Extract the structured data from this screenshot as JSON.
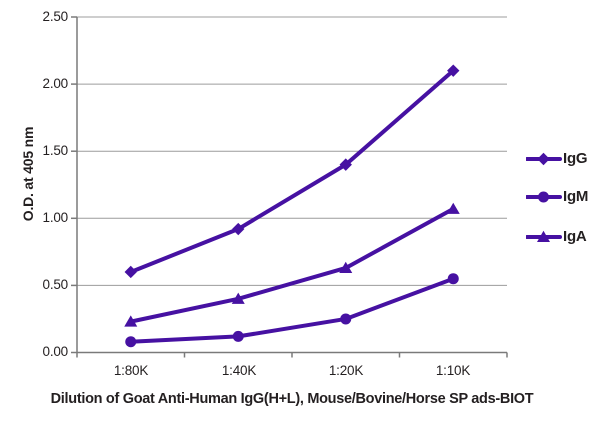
{
  "colors": {
    "series": "#4611a2",
    "grid": "#9c9c9c",
    "axis": "#7a7a7a",
    "text": "#231f20"
  },
  "chart_data": {
    "type": "line",
    "categories": [
      "1:80K",
      "1:40K",
      "1:20K",
      "1:10K"
    ],
    "series": [
      {
        "name": "IgG",
        "marker": "diamond",
        "color": "#4611a2",
        "values": [
          0.6,
          0.92,
          1.4,
          2.1
        ]
      },
      {
        "name": "IgM",
        "marker": "circle",
        "color": "#4611a2",
        "values": [
          0.08,
          0.12,
          0.25,
          0.55
        ]
      },
      {
        "name": "IgA",
        "marker": "triangle",
        "color": "#4611a2",
        "values": [
          0.23,
          0.4,
          0.63,
          1.07
        ]
      }
    ],
    "xlabel": "Dilution of Goat Anti-Human IgG(H+L), Mouse/Bovine/Horse SP ads-BIOT",
    "ylabel": "O.D. at 405 nm",
    "ylim": [
      0,
      2.5
    ],
    "ytick_step": 0.5,
    "yticks": [
      "0.00",
      "0.50",
      "1.00",
      "1.50",
      "2.00",
      "2.50"
    ],
    "grid": true,
    "legend_position": "right"
  }
}
